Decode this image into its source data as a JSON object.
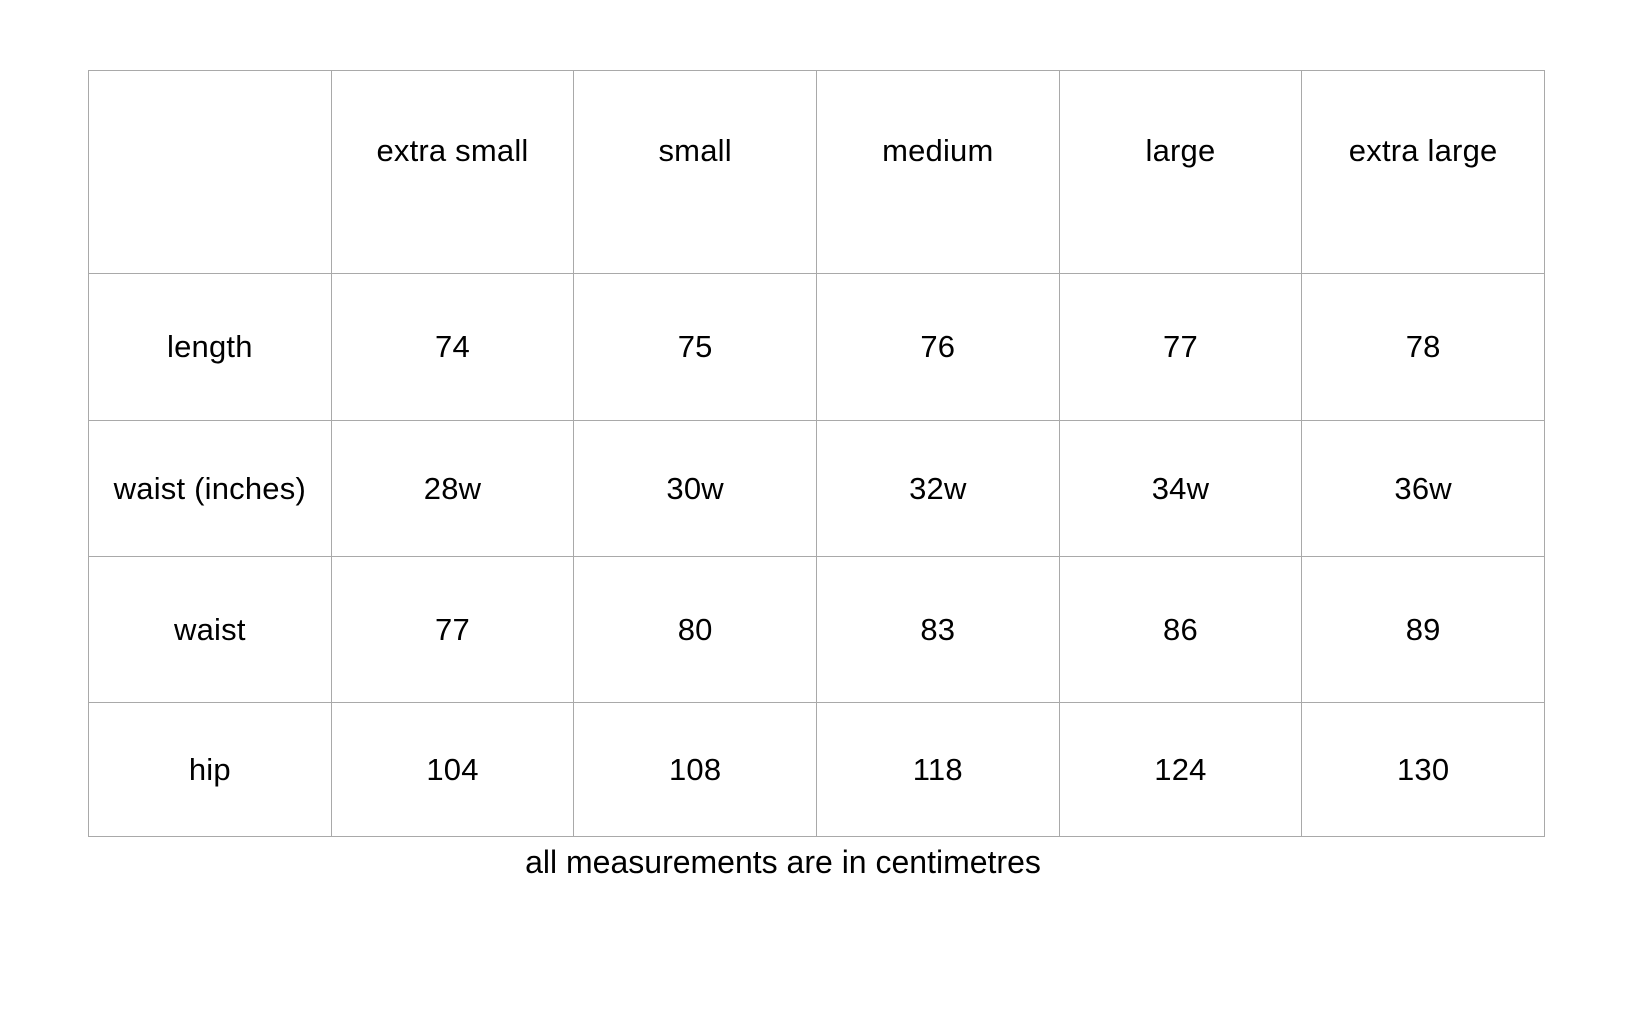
{
  "table": {
    "columns": [
      "",
      "extra small",
      "small",
      "medium",
      "large",
      "extra large"
    ],
    "rows": [
      {
        "label": "length",
        "values": [
          "74",
          "75",
          "76",
          "77",
          "78"
        ]
      },
      {
        "label": "waist (inches)",
        "values": [
          "28w",
          "30w",
          "32w",
          "34w",
          "36w"
        ]
      },
      {
        "label": "waist",
        "values": [
          "77",
          "80",
          "83",
          "86",
          "89"
        ]
      },
      {
        "label": "hip",
        "values": [
          "104",
          "108",
          "118",
          "124",
          "130"
        ]
      }
    ]
  },
  "footer": {
    "note": "all measurements are in centimetres"
  },
  "colors": {
    "border": "#a9a9a9",
    "text": "#000000",
    "background": "#ffffff"
  }
}
